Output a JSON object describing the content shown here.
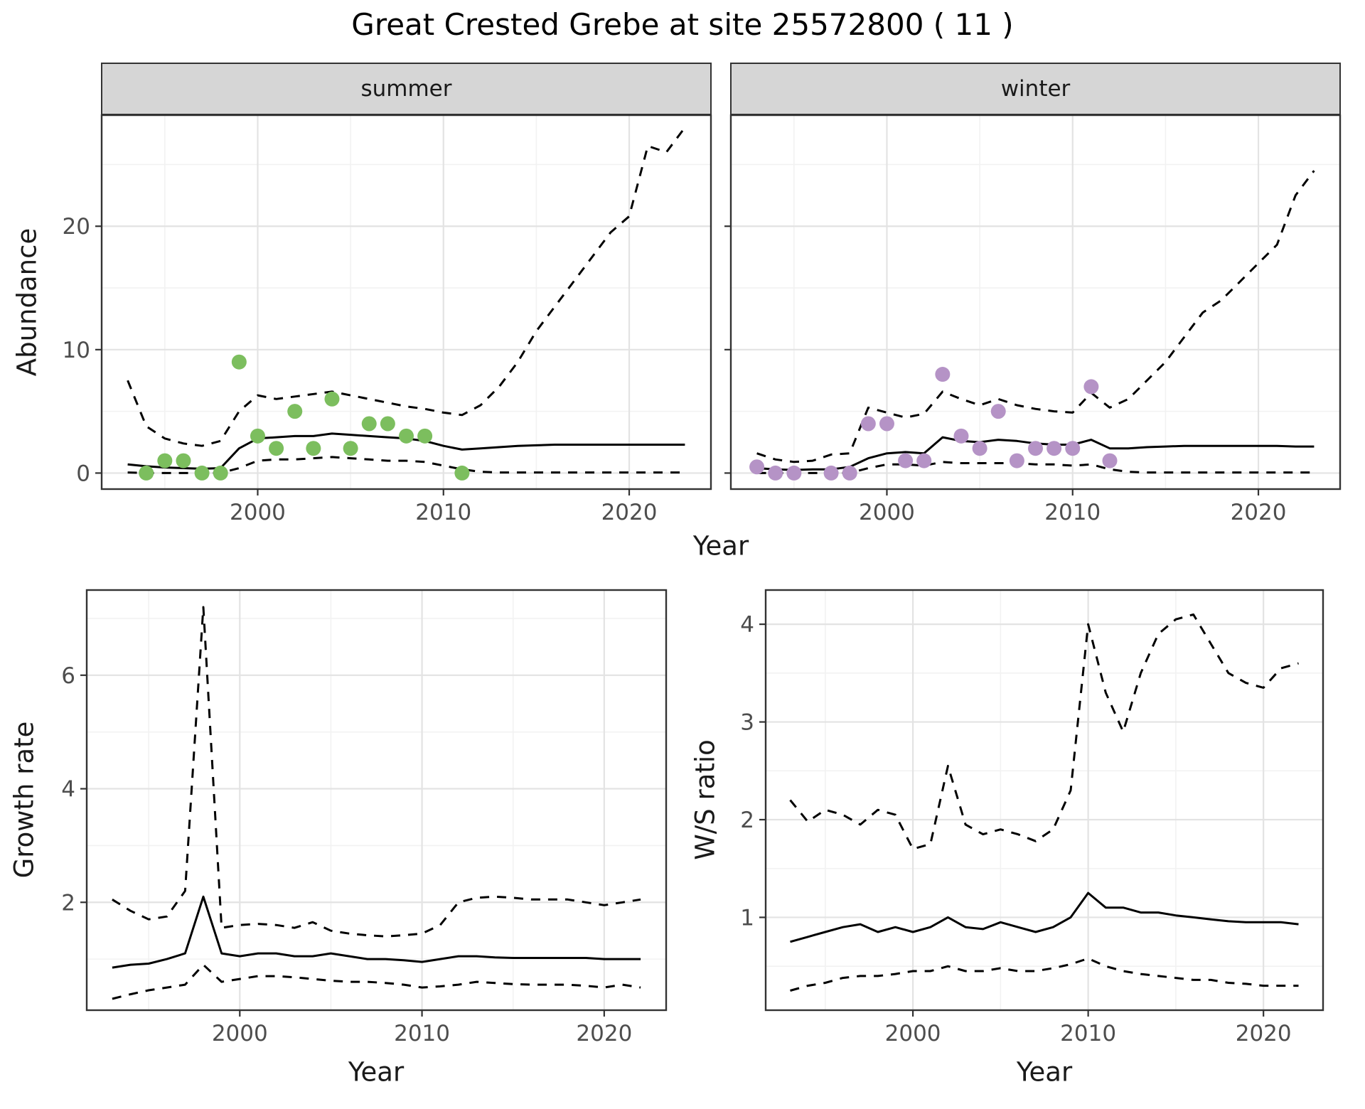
{
  "title": "Great Crested Grebe at site 25572800 ( 11 )",
  "axes": {
    "year": "Year",
    "abundance": "Abundance",
    "growth": "Growth rate",
    "ws": "W/S ratio"
  },
  "facets": [
    {
      "label": "summer"
    },
    {
      "label": "winter"
    }
  ],
  "theme": {
    "background": "#ffffff",
    "panel_border": "#333333",
    "grid_major": "#e3e3e3",
    "grid_minor": "#f2f2f2",
    "tick_color": "#333333",
    "tick_label_color": "#4d4d4d",
    "line_color": "#000000",
    "strip_fill": "#d6d6d6",
    "summer_point": "#7CBE5E",
    "winter_point": "#B593C6"
  },
  "chart_data": [
    {
      "name": "summer-abundance",
      "type": "line",
      "facet": "summer",
      "x_label": "Year",
      "y_label": "Abundance",
      "xlim": [
        1991.6,
        2024.4
      ],
      "ylim": [
        -1.3,
        29
      ],
      "xticks": [
        2000,
        2010,
        2020
      ],
      "xminor": [
        1995,
        2005,
        2015
      ],
      "yticks": [
        0,
        10,
        20
      ],
      "yminor": [
        5,
        15,
        25
      ],
      "x": [
        1993,
        1994,
        1995,
        1996,
        1997,
        1998,
        1999,
        2000,
        2001,
        2002,
        2003,
        2004,
        2005,
        2006,
        2007,
        2008,
        2009,
        2010,
        2011,
        2012,
        2013,
        2014,
        2015,
        2016,
        2017,
        2018,
        2019,
        2020,
        2021,
        2022,
        2023
      ],
      "series": [
        {
          "name": "median",
          "style": "solid",
          "values": [
            0.7,
            0.55,
            0.45,
            0.4,
            0.35,
            0.4,
            2.0,
            2.8,
            2.9,
            3.0,
            3.0,
            3.2,
            3.1,
            3.0,
            2.9,
            2.8,
            2.6,
            2.2,
            1.9,
            2.0,
            2.1,
            2.2,
            2.25,
            2.3,
            2.3,
            2.3,
            2.3,
            2.3,
            2.3,
            2.3,
            2.3
          ]
        },
        {
          "name": "upper_ci",
          "style": "dashed",
          "values": [
            7.5,
            3.8,
            2.8,
            2.4,
            2.2,
            2.6,
            5.0,
            6.3,
            6.0,
            6.2,
            6.4,
            6.6,
            6.3,
            6.0,
            5.7,
            5.4,
            5.2,
            4.9,
            4.7,
            5.5,
            7.0,
            9.0,
            11.5,
            13.5,
            15.5,
            17.5,
            19.5,
            20.8,
            26.5,
            26.0,
            28.0
          ]
        },
        {
          "name": "lower_ci",
          "style": "dashed",
          "values": [
            0.05,
            0.0,
            0.0,
            0.0,
            0.0,
            0.0,
            0.4,
            1.0,
            1.1,
            1.1,
            1.2,
            1.3,
            1.2,
            1.1,
            1.0,
            1.0,
            0.9,
            0.6,
            0.3,
            0.1,
            0.05,
            0.05,
            0.05,
            0.05,
            0.05,
            0.05,
            0.05,
            0.05,
            0.05,
            0.05,
            0.05
          ]
        }
      ],
      "points": {
        "label": "observed summer counts",
        "color": "#7CBE5E",
        "x": [
          1994,
          1995,
          1996,
          1997,
          1998,
          1999,
          2000,
          2001,
          2002,
          2003,
          2004,
          2005,
          2006,
          2007,
          2008,
          2009,
          2011
        ],
        "y": [
          0,
          1,
          1,
          0,
          0,
          9,
          3,
          2,
          5,
          2,
          6,
          2,
          4,
          4,
          3,
          3,
          0
        ]
      }
    },
    {
      "name": "winter-abundance",
      "type": "line",
      "facet": "winter",
      "x_label": "Year",
      "y_label": "Abundance",
      "xlim": [
        1991.6,
        2024.4
      ],
      "ylim": [
        -1.3,
        29
      ],
      "xticks": [
        2000,
        2010,
        2020
      ],
      "xminor": [
        1995,
        2005,
        2015
      ],
      "yticks": [
        0,
        10,
        20
      ],
      "yminor": [
        5,
        15,
        25
      ],
      "x": [
        1993,
        1994,
        1995,
        1996,
        1997,
        1998,
        1999,
        2000,
        2001,
        2002,
        2003,
        2004,
        2005,
        2006,
        2007,
        2008,
        2009,
        2010,
        2011,
        2012,
        2013,
        2014,
        2015,
        2016,
        2017,
        2018,
        2019,
        2020,
        2021,
        2022,
        2023
      ],
      "series": [
        {
          "name": "median",
          "style": "solid",
          "values": [
            0.4,
            0.3,
            0.25,
            0.3,
            0.3,
            0.5,
            1.2,
            1.6,
            1.7,
            1.6,
            2.9,
            2.6,
            2.5,
            2.7,
            2.6,
            2.4,
            2.3,
            2.3,
            2.7,
            2.0,
            2.0,
            2.1,
            2.15,
            2.2,
            2.2,
            2.2,
            2.2,
            2.2,
            2.2,
            2.15,
            2.15
          ]
        },
        {
          "name": "upper_ci",
          "style": "dashed",
          "values": [
            1.6,
            1.1,
            0.9,
            1.0,
            1.5,
            1.6,
            5.3,
            4.9,
            4.5,
            4.8,
            6.6,
            6.0,
            5.5,
            6.0,
            5.5,
            5.2,
            5.0,
            4.9,
            6.5,
            5.3,
            6.0,
            7.5,
            9.0,
            11.0,
            13.0,
            14.0,
            15.5,
            17.0,
            18.5,
            22.5,
            24.5
          ]
        },
        {
          "name": "lower_ci",
          "style": "dashed",
          "values": [
            0.0,
            0.0,
            0.0,
            0.0,
            0.0,
            0.0,
            0.4,
            0.7,
            0.7,
            0.6,
            0.9,
            0.8,
            0.8,
            0.8,
            0.8,
            0.7,
            0.7,
            0.6,
            0.7,
            0.3,
            0.1,
            0.05,
            0.05,
            0.05,
            0.05,
            0.05,
            0.05,
            0.05,
            0.05,
            0.05,
            0.05
          ]
        }
      ],
      "points": {
        "label": "observed winter counts",
        "color": "#B593C6",
        "x": [
          1993,
          1994,
          1995,
          1997,
          1998,
          1999,
          2000,
          2001,
          2002,
          2003,
          2004,
          2005,
          2006,
          2007,
          2008,
          2009,
          2010,
          2011,
          2012
        ],
        "y": [
          0.5,
          0,
          0,
          0,
          0,
          4,
          4,
          1,
          1,
          8,
          3,
          2,
          5,
          1,
          2,
          2,
          2,
          7,
          1
        ]
      }
    },
    {
      "name": "growth-rate",
      "type": "line",
      "x_label": "Year",
      "y_label": "Growth rate",
      "xlim": [
        1991.6,
        2023.4
      ],
      "ylim": [
        0.1,
        7.5
      ],
      "xticks": [
        2000,
        2010,
        2020
      ],
      "xminor": [
        1995,
        2005,
        2015
      ],
      "yticks": [
        2,
        4,
        6
      ],
      "yminor": [
        1,
        3,
        5,
        7
      ],
      "x": [
        1993,
        1994,
        1995,
        1996,
        1997,
        1998,
        1999,
        2000,
        2001,
        2002,
        2003,
        2004,
        2005,
        2006,
        2007,
        2008,
        2009,
        2010,
        2011,
        2012,
        2013,
        2014,
        2015,
        2016,
        2017,
        2018,
        2019,
        2020,
        2021,
        2022
      ],
      "series": [
        {
          "name": "median",
          "style": "solid",
          "values": [
            0.85,
            0.9,
            0.92,
            1.0,
            1.1,
            2.1,
            1.1,
            1.05,
            1.1,
            1.1,
            1.05,
            1.05,
            1.1,
            1.05,
            1.0,
            1.0,
            0.98,
            0.95,
            1.0,
            1.05,
            1.05,
            1.03,
            1.02,
            1.02,
            1.02,
            1.02,
            1.02,
            1.0,
            1.0,
            1.0
          ]
        },
        {
          "name": "upper_ci",
          "style": "dashed",
          "values": [
            2.05,
            1.85,
            1.7,
            1.75,
            2.2,
            7.2,
            1.55,
            1.6,
            1.62,
            1.6,
            1.55,
            1.65,
            1.5,
            1.45,
            1.42,
            1.4,
            1.42,
            1.45,
            1.6,
            2.0,
            2.08,
            2.1,
            2.08,
            2.05,
            2.05,
            2.05,
            2.0,
            1.95,
            2.0,
            2.05
          ]
        },
        {
          "name": "lower_ci",
          "style": "dashed",
          "values": [
            0.3,
            0.38,
            0.45,
            0.5,
            0.55,
            0.9,
            0.6,
            0.65,
            0.7,
            0.7,
            0.68,
            0.65,
            0.62,
            0.6,
            0.6,
            0.58,
            0.55,
            0.5,
            0.52,
            0.55,
            0.6,
            0.58,
            0.56,
            0.55,
            0.55,
            0.55,
            0.53,
            0.5,
            0.55,
            0.5
          ]
        }
      ]
    },
    {
      "name": "ws-ratio",
      "type": "line",
      "x_label": "Year",
      "y_label": "W/S ratio",
      "xlim": [
        1991.6,
        2023.4
      ],
      "ylim": [
        0.05,
        4.35
      ],
      "xticks": [
        2000,
        2010,
        2020
      ],
      "xminor": [
        1995,
        2005,
        2015
      ],
      "yticks": [
        1,
        2,
        3,
        4
      ],
      "yminor": [
        0.5,
        1.5,
        2.5,
        3.5
      ],
      "x": [
        1993,
        1994,
        1995,
        1996,
        1997,
        1998,
        1999,
        2000,
        2001,
        2002,
        2003,
        2004,
        2005,
        2006,
        2007,
        2008,
        2009,
        2010,
        2011,
        2012,
        2013,
        2014,
        2015,
        2016,
        2017,
        2018,
        2019,
        2020,
        2021,
        2022
      ],
      "series": [
        {
          "name": "median",
          "style": "solid",
          "values": [
            0.75,
            0.8,
            0.85,
            0.9,
            0.93,
            0.85,
            0.9,
            0.85,
            0.9,
            1.0,
            0.9,
            0.88,
            0.95,
            0.9,
            0.85,
            0.9,
            1.0,
            1.25,
            1.1,
            1.1,
            1.05,
            1.05,
            1.02,
            1.0,
            0.98,
            0.96,
            0.95,
            0.95,
            0.95,
            0.93
          ]
        },
        {
          "name": "upper_ci",
          "style": "dashed",
          "values": [
            2.2,
            1.98,
            2.1,
            2.05,
            1.95,
            2.1,
            2.05,
            1.7,
            1.75,
            2.55,
            1.95,
            1.85,
            1.9,
            1.85,
            1.78,
            1.9,
            2.3,
            4.0,
            3.3,
            2.9,
            3.5,
            3.9,
            4.05,
            4.1,
            3.8,
            3.5,
            3.4,
            3.35,
            3.55,
            3.6
          ]
        },
        {
          "name": "lower_ci",
          "style": "dashed",
          "values": [
            0.25,
            0.3,
            0.33,
            0.38,
            0.4,
            0.4,
            0.42,
            0.45,
            0.45,
            0.5,
            0.45,
            0.45,
            0.48,
            0.45,
            0.45,
            0.48,
            0.52,
            0.58,
            0.5,
            0.45,
            0.42,
            0.4,
            0.38,
            0.36,
            0.36,
            0.33,
            0.32,
            0.3,
            0.3,
            0.3
          ]
        }
      ]
    }
  ]
}
